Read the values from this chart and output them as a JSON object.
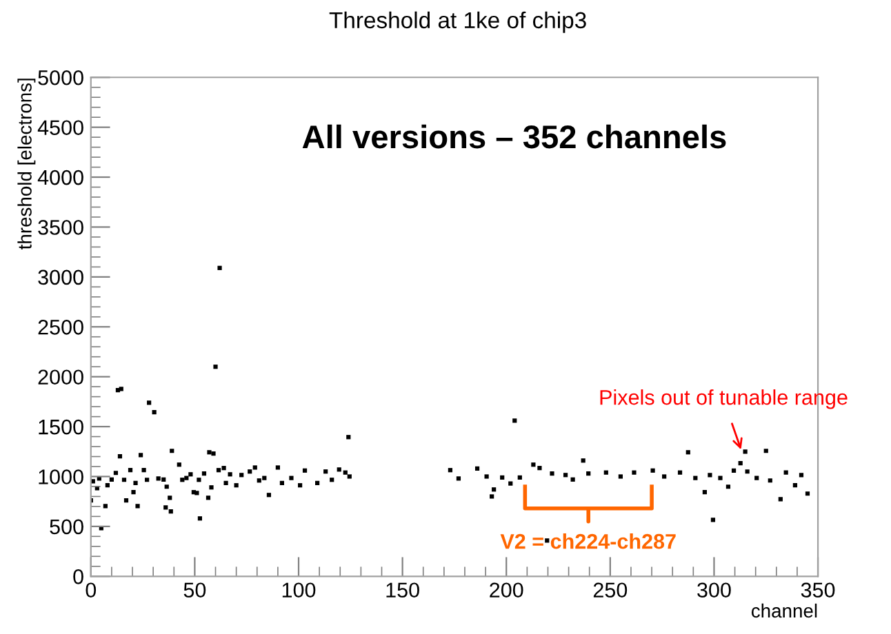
{
  "chart_data": {
    "type": "scatter",
    "title": "Threshold at 1ke of chip3",
    "xlabel": "channel",
    "ylabel": "threshold [electrons]",
    "x": [
      0,
      1,
      3,
      4,
      5,
      7,
      8,
      10,
      12,
      13,
      14,
      14.6,
      16,
      17,
      19,
      20.5,
      21.5,
      22.5,
      24,
      25.5,
      27,
      28,
      30.5,
      32.5,
      35,
      36,
      36.5,
      38,
      38.5,
      39,
      42.5,
      44,
      46,
      48,
      49.5,
      51,
      52,
      52.5,
      54.5,
      56.5,
      57,
      58,
      59,
      60,
      61.5,
      62,
      64,
      65,
      67,
      70,
      72.5,
      76.5,
      79,
      81,
      83.5,
      85.7,
      90,
      92,
      96.5,
      100.7,
      103,
      109,
      113,
      116,
      119.5,
      122.5,
      124,
      124.5,
      173,
      177,
      186,
      190.5,
      193,
      194,
      198,
      202,
      204,
      206.5,
      213,
      216,
      219.6,
      222,
      228.5,
      232,
      237,
      239.5,
      248,
      255,
      261.5,
      270.5,
      276,
      283.6,
      287.5,
      291,
      295.5,
      298,
      299.5,
      303,
      306.8,
      309.5,
      312.7,
      315,
      316,
      320.5,
      325,
      327,
      332,
      334.6,
      339,
      342,
      345
    ],
    "values": [
      760,
      953,
      884,
      980,
      483,
      704,
      912,
      970,
      1036,
      1865,
      1202,
      1878,
      967,
      760,
      1064,
      843,
      935,
      704,
      1215,
      1064,
      967,
      1740,
      1644,
      980,
      970,
      690,
      898,
      787,
      650,
      1257,
      1119,
      967,
      985,
      1022,
      843,
      835,
      967,
      580,
      1030,
      787,
      1243,
      891,
      1230,
      2100,
      1064,
      3090,
      1085,
      935,
      1022,
      912,
      1015,
      1050,
      1090,
      960,
      985,
      815,
      1090,
      935,
      985,
      912,
      1060,
      935,
      1050,
      967,
      1070,
      1040,
      1395,
      1000,
      1064,
      980,
      1080,
      1000,
      800,
      870,
      990,
      930,
      1560,
      990,
      1119,
      1085,
      359,
      1030,
      1015,
      970,
      1160,
      1030,
      1040,
      1000,
      1040,
      1060,
      1000,
      1040,
      1243,
      985,
      843,
      1015,
      566,
      985,
      898,
      1060,
      1133,
      1250,
      1050,
      985,
      1257,
      960,
      773,
      1040,
      912,
      1015,
      829
    ],
    "color": "#000000",
    "marker": "square",
    "grid": false,
    "legend": false,
    "xlim": [
      0,
      350
    ],
    "xticks": [
      0,
      50,
      100,
      150,
      200,
      250,
      300,
      350
    ],
    "ylim": [
      0,
      5000
    ],
    "yticks": [
      0,
      500,
      1000,
      1500,
      2000,
      2500,
      3000,
      3500,
      4000,
      4500,
      5000
    ],
    "annotations": [
      "All versions – 352 channels",
      "Pixels out of tunable range",
      "V2 = ch224-ch287"
    ]
  }
}
